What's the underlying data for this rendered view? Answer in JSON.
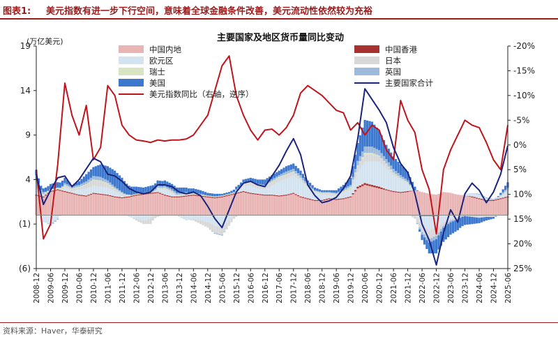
{
  "header": {
    "figure_label": "图表1:",
    "figure_title": "美元指数有进一步下行空间，意味着全球金融条件改善，美元流动性依然较为充裕"
  },
  "footer": {
    "source": "资料来源：Haver，华泰研究"
  },
  "colors": {
    "china": "#e8b4b4",
    "hongkong": "#a83232",
    "euro": "#d4e3f0",
    "japan": "#d8d8d8",
    "swiss": "#d8e4c2",
    "uk": "#9db9dc",
    "us": "#3d78cf",
    "total": "#1a237e",
    "dxy": "#c0141c",
    "title_red": "#9b1a1a"
  },
  "chart_data": {
    "type": "bar",
    "title": "主要国家及地区货币量同比变动",
    "ylabel": "(万亿美元)",
    "ylim": [
      -6,
      19
    ],
    "yticks": [
      19,
      14,
      9,
      4,
      -1,
      -6
    ],
    "ytick_labels": [
      "19",
      "14",
      "9",
      "4",
      "(1)",
      "(6)"
    ],
    "y2lim": [
      -20,
      25
    ],
    "y2ticks": [
      -20,
      -15,
      -10,
      -5,
      0,
      5,
      10,
      15,
      20,
      25
    ],
    "y2tick_labels": [
      "-20%",
      "-15%",
      "-10%",
      "-5%",
      "0%",
      "5%",
      "10%",
      "15%",
      "20%",
      "25%"
    ],
    "y2_inverted": true,
    "x_start": "2008-12",
    "x_end": "2025-06",
    "xtick_labels": [
      "2008-12",
      "2009-06",
      "2009-12",
      "2010-06",
      "2010-12",
      "2011-06",
      "2011-12",
      "2012-06",
      "2012-12",
      "2013-06",
      "2013-12",
      "2014-06",
      "2014-12",
      "2015-06",
      "2015-12",
      "2016-06",
      "2016-12",
      "2017-06",
      "2017-12",
      "2018-06",
      "2018-12",
      "2019-06",
      "2019-12",
      "2020-06",
      "2020-12",
      "2021-06",
      "2021-12",
      "2022-06",
      "2022-12",
      "2023-06",
      "2023-12",
      "2024-06",
      "2024-12",
      "2025-06"
    ],
    "legend": [
      {
        "key": "china",
        "label": "中国内地",
        "kind": "bar"
      },
      {
        "key": "hongkong",
        "label": "中国香港",
        "kind": "bar"
      },
      {
        "key": "euro",
        "label": "欧元区",
        "kind": "bar"
      },
      {
        "key": "japan",
        "label": "日本",
        "kind": "bar"
      },
      {
        "key": "swiss",
        "label": "瑞士",
        "kind": "bar"
      },
      {
        "key": "uk",
        "label": "英国",
        "kind": "bar"
      },
      {
        "key": "us",
        "label": "美国",
        "kind": "bar"
      },
      {
        "key": "total",
        "label": "主要国家合计",
        "kind": "line"
      },
      {
        "key": "dxy",
        "label": "美元指数同比（右轴，逆序）",
        "kind": "line"
      }
    ],
    "anchor_dates": [
      "2008-12",
      "2009-03",
      "2009-06",
      "2009-09",
      "2009-12",
      "2010-03",
      "2010-06",
      "2010-09",
      "2010-12",
      "2011-03",
      "2011-06",
      "2011-09",
      "2011-12",
      "2012-03",
      "2012-06",
      "2012-09",
      "2012-12",
      "2013-03",
      "2013-06",
      "2013-09",
      "2013-12",
      "2014-03",
      "2014-06",
      "2014-09",
      "2014-12",
      "2015-03",
      "2015-06",
      "2015-09",
      "2015-12",
      "2016-03",
      "2016-06",
      "2016-09",
      "2016-12",
      "2017-03",
      "2017-06",
      "2017-09",
      "2017-12",
      "2018-03",
      "2018-06",
      "2018-09",
      "2018-12",
      "2019-03",
      "2019-06",
      "2019-09",
      "2019-12",
      "2020-03",
      "2020-06",
      "2020-09",
      "2020-12",
      "2021-03",
      "2021-06",
      "2021-09",
      "2021-12",
      "2022-03",
      "2022-06",
      "2022-09",
      "2022-12",
      "2023-03",
      "2023-06",
      "2023-09",
      "2023-12",
      "2024-03",
      "2024-06",
      "2024-09",
      "2024-12",
      "2025-03",
      "2025-06"
    ],
    "series": [
      {
        "key": "china",
        "values": [
          2.2,
          2.0,
          2.6,
          2.8,
          2.6,
          2.4,
          2.2,
          2.1,
          2.4,
          2.3,
          2.2,
          2.0,
          1.9,
          2.0,
          2.2,
          2.3,
          2.4,
          2.5,
          2.2,
          2.0,
          2.0,
          2.1,
          2.2,
          2.1,
          2.0,
          1.9,
          2.0,
          2.2,
          2.4,
          2.6,
          2.4,
          2.3,
          2.2,
          2.2,
          2.1,
          2.2,
          2.4,
          2.0,
          1.8,
          1.6,
          1.6,
          1.8,
          1.7,
          1.8,
          2.0,
          3.0,
          3.4,
          3.2,
          3.0,
          2.8,
          2.6,
          2.5,
          2.6,
          2.8,
          2.6,
          2.4,
          2.3,
          2.6,
          2.5,
          2.3,
          2.2,
          2.0,
          1.8,
          1.6,
          1.6,
          1.8,
          2.0
        ]
      },
      {
        "key": "hongkong",
        "values": [
          0.1,
          0.1,
          0.1,
          0.1,
          0.1,
          0.1,
          0.1,
          0.1,
          0.1,
          0.1,
          0.1,
          0.1,
          0.1,
          0.1,
          0.1,
          0.1,
          0.1,
          0.1,
          0.1,
          0.1,
          0.1,
          0.1,
          0.1,
          0.1,
          0.1,
          0.1,
          0.1,
          0.1,
          0.1,
          0.1,
          0.1,
          0.1,
          0.1,
          0.1,
          0.1,
          0.1,
          0.1,
          0.1,
          0.1,
          0.1,
          0.1,
          0.1,
          0.1,
          0.1,
          0.1,
          0.2,
          0.2,
          0.2,
          0.2,
          0.1,
          0.1,
          0.1,
          0.1,
          0.0,
          -0.1,
          -0.1,
          -0.1,
          0.0,
          0.0,
          0.0,
          0.0,
          0.1,
          0.1,
          0.1,
          0.1,
          0.1,
          0.1
        ]
      },
      {
        "key": "euro",
        "values": [
          1.2,
          -0.8,
          -1.0,
          -0.4,
          0.4,
          0.2,
          0.6,
          0.8,
          0.8,
          0.8,
          0.8,
          0.6,
          0.2,
          -0.2,
          -0.4,
          -0.6,
          -0.4,
          0.4,
          0.6,
          0.4,
          -0.2,
          -0.6,
          -0.4,
          -0.6,
          -0.8,
          -1.2,
          -1.4,
          -0.6,
          0.2,
          0.6,
          0.8,
          0.6,
          0.6,
          1.0,
          1.6,
          1.8,
          2.0,
          1.8,
          1.2,
          0.8,
          0.6,
          0.4,
          0.4,
          0.6,
          0.8,
          1.6,
          2.4,
          2.6,
          2.8,
          2.4,
          1.8,
          1.4,
          0.8,
          0.0,
          -1.0,
          -1.6,
          -1.4,
          -0.8,
          -0.4,
          -0.2,
          0.2,
          0.4,
          0.4,
          0.2,
          0.0,
          0.2,
          0.6
        ]
      },
      {
        "key": "japan",
        "values": [
          0.4,
          0.2,
          0.1,
          0.1,
          0.2,
          0.2,
          0.2,
          0.4,
          0.6,
          0.6,
          0.4,
          0.2,
          0.2,
          0.1,
          -0.2,
          -0.4,
          -0.6,
          -0.2,
          0.1,
          0.1,
          0.1,
          0.1,
          -0.2,
          -0.4,
          -0.6,
          -0.8,
          -0.8,
          -0.6,
          -0.2,
          0.2,
          0.3,
          0.3,
          0.3,
          0.4,
          0.4,
          0.4,
          0.3,
          0.2,
          0.1,
          0.1,
          0.1,
          0.1,
          0.1,
          0.1,
          0.2,
          0.6,
          0.8,
          0.8,
          0.6,
          0.4,
          0.2,
          0.1,
          0.1,
          -0.4,
          -0.8,
          -1.0,
          -0.8,
          -0.4,
          -0.2,
          -0.2,
          -0.1,
          -0.2,
          -0.3,
          -0.2,
          -0.2,
          0.1,
          0.2
        ]
      },
      {
        "key": "swiss",
        "values": [
          0.1,
          0.1,
          0.1,
          0.1,
          0.1,
          0.1,
          0.1,
          0.1,
          0.1,
          0.1,
          0.1,
          0.1,
          0.1,
          0.1,
          0.1,
          0.1,
          0.1,
          0.1,
          0.1,
          0.1,
          0.1,
          0.1,
          0.1,
          0.1,
          0.1,
          0.1,
          0.1,
          0.1,
          0.1,
          0.1,
          0.1,
          0.1,
          0.1,
          0.1,
          0.1,
          0.1,
          0.1,
          0.1,
          0.1,
          0.1,
          0.1,
          0.1,
          0.1,
          0.1,
          0.1,
          0.2,
          0.2,
          0.2,
          0.1,
          0.1,
          0.1,
          0.1,
          0.1,
          0.0,
          0.0,
          0.0,
          0.0,
          0.0,
          0.0,
          0.0,
          0.0,
          0.0,
          0.0,
          0.0,
          0.0,
          0.0,
          0.0
        ]
      },
      {
        "key": "uk",
        "values": [
          0.5,
          0.2,
          -0.2,
          -0.1,
          0.2,
          0.2,
          0.2,
          0.3,
          0.4,
          0.4,
          0.3,
          0.2,
          0.1,
          0.0,
          0.0,
          0.0,
          0.1,
          0.2,
          0.2,
          0.2,
          0.2,
          0.2,
          0.2,
          0.1,
          0.0,
          -0.1,
          -0.1,
          0.0,
          0.1,
          0.1,
          0.1,
          0.1,
          0.1,
          0.2,
          0.2,
          0.3,
          0.3,
          0.3,
          0.2,
          0.1,
          0.1,
          0.1,
          0.1,
          0.2,
          0.2,
          0.5,
          0.7,
          0.7,
          0.6,
          0.5,
          0.4,
          0.3,
          0.2,
          0.0,
          -0.3,
          -0.4,
          -0.4,
          -0.2,
          -0.2,
          -0.1,
          0.0,
          0.0,
          0.1,
          0.1,
          0.1,
          0.1,
          0.2
        ]
      },
      {
        "key": "us",
        "values": [
          0.6,
          0.4,
          0.6,
          0.6,
          0.6,
          0.2,
          0.4,
          0.8,
          1.0,
          1.4,
          1.6,
          1.8,
          1.6,
          1.0,
          0.8,
          0.6,
          0.6,
          0.6,
          0.6,
          0.6,
          0.6,
          0.5,
          0.4,
          0.4,
          0.3,
          0.3,
          0.2,
          0.2,
          0.3,
          0.3,
          0.4,
          0.5,
          0.6,
          0.5,
          0.5,
          0.6,
          0.6,
          0.5,
          0.4,
          0.3,
          0.2,
          0.2,
          0.3,
          0.5,
          0.8,
          2.0,
          3.0,
          2.8,
          2.2,
          1.6,
          1.4,
          1.2,
          1.0,
          0.4,
          -0.6,
          -1.2,
          -1.6,
          -1.6,
          -1.4,
          -1.2,
          -1.0,
          -0.8,
          -0.6,
          -0.4,
          -0.2,
          0.2,
          0.6
        ]
      },
      {
        "key": "total",
        "values": [
          4.6,
          1.2,
          2.8,
          4.2,
          4.4,
          3.2,
          4.0,
          5.2,
          6.4,
          6.0,
          4.6,
          4.4,
          3.8,
          3.0,
          2.6,
          2.4,
          2.6,
          3.4,
          3.4,
          3.2,
          2.6,
          2.4,
          2.6,
          2.2,
          1.0,
          -0.4,
          -1.4,
          0.6,
          2.6,
          3.6,
          3.8,
          3.4,
          3.2,
          4.4,
          5.6,
          7.2,
          8.6,
          6.8,
          3.4,
          2.2,
          1.4,
          1.6,
          2.0,
          3.0,
          4.4,
          8.6,
          14.2,
          13.0,
          11.8,
          10.4,
          7.6,
          5.8,
          4.8,
          2.4,
          -1.0,
          -2.8,
          -5.6,
          -2.0,
          0.6,
          -0.8,
          2.4,
          3.6,
          2.8,
          1.4,
          2.6,
          4.6,
          7.8
        ]
      },
      {
        "key": "dxy",
        "values": [
          5.0,
          19.0,
          16.0,
          4.0,
          -12.5,
          -6.0,
          -2.0,
          -8.0,
          3.0,
          0.5,
          -12.0,
          -10.0,
          -4.0,
          -2.0,
          -1.0,
          -0.8,
          -0.5,
          -1.0,
          -0.8,
          -1.0,
          -1.0,
          -1.2,
          -2.0,
          -4.0,
          -6.0,
          -11.0,
          -16.0,
          -18.0,
          -10.0,
          -6.0,
          -3.0,
          -1.0,
          -3.0,
          -3.2,
          -2.0,
          -3.5,
          -6.0,
          -10.5,
          -12.0,
          -11.0,
          -10.0,
          -8.5,
          -7.0,
          -6.5,
          -3.0,
          -4.5,
          -2.0,
          -4.0,
          -3.0,
          1.0,
          3.0,
          -9.0,
          -5.0,
          -2.5,
          5.0,
          9.0,
          18.0,
          5.0,
          1.0,
          -2.0,
          -5.0,
          -4.0,
          -3.5,
          -0.5,
          3.0,
          5.0,
          -4.0
        ]
      }
    ]
  }
}
